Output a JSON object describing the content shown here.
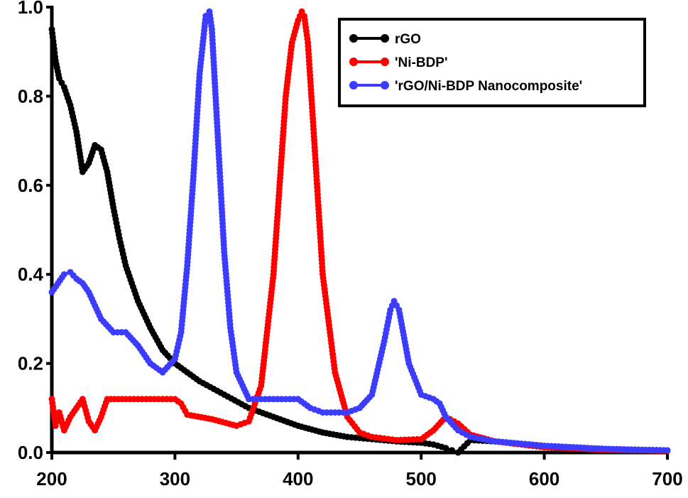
{
  "chart_data": {
    "type": "line",
    "title": "",
    "xlabel": "",
    "ylabel": "",
    "xlim": [
      200,
      700
    ],
    "ylim": [
      0,
      1.0
    ],
    "xticks": [
      "200",
      "300",
      "400",
      "500",
      "600",
      "700"
    ],
    "yticks": [
      "0.0",
      "0.2",
      "0.4",
      "0.6",
      "0.8",
      "1.0"
    ],
    "grid": false,
    "legend_position": "top-right",
    "series": [
      {
        "name": "rGO",
        "color": "#000000",
        "x": [
          200,
          203,
          206,
          210,
          215,
          220,
          225,
          230,
          235,
          240,
          245,
          250,
          255,
          260,
          265,
          270,
          280,
          290,
          300,
          310,
          320,
          340,
          360,
          380,
          400,
          420,
          440,
          460,
          480,
          500,
          510,
          520,
          525,
          530,
          540,
          560,
          600,
          650,
          700
        ],
        "y": [
          0.95,
          0.88,
          0.84,
          0.82,
          0.78,
          0.72,
          0.63,
          0.65,
          0.69,
          0.68,
          0.63,
          0.55,
          0.48,
          0.42,
          0.38,
          0.34,
          0.28,
          0.23,
          0.2,
          0.18,
          0.16,
          0.13,
          0.1,
          0.08,
          0.06,
          0.045,
          0.035,
          0.03,
          0.025,
          0.022,
          0.018,
          0.01,
          0.005,
          0.0,
          0.028,
          0.025,
          0.015,
          0.008,
          0.004
        ]
      },
      {
        "name": "'Ni-BDP'",
        "color": "#ff0000",
        "x": [
          200,
          203,
          206,
          210,
          215,
          220,
          225,
          230,
          235,
          240,
          245,
          260,
          280,
          300,
          305,
          310,
          330,
          350,
          360,
          370,
          380,
          390,
          395,
          400,
          403,
          405,
          408,
          412,
          420,
          430,
          440,
          450,
          460,
          480,
          500,
          510,
          520,
          530,
          540,
          560,
          600,
          650,
          700
        ],
        "y": [
          0.12,
          0.06,
          0.09,
          0.05,
          0.08,
          0.1,
          0.12,
          0.07,
          0.05,
          0.08,
          0.12,
          0.12,
          0.12,
          0.12,
          0.11,
          0.085,
          0.075,
          0.06,
          0.07,
          0.15,
          0.4,
          0.8,
          0.92,
          0.97,
          0.99,
          0.98,
          0.92,
          0.75,
          0.4,
          0.18,
          0.08,
          0.045,
          0.035,
          0.028,
          0.03,
          0.05,
          0.08,
          0.065,
          0.04,
          0.025,
          0.012,
          0.006,
          0.004
        ]
      },
      {
        "name": "'rGO/Ni-BDP Nanocomposite'",
        "color": "#3c3cff",
        "x": [
          200,
          205,
          210,
          215,
          220,
          225,
          230,
          240,
          250,
          260,
          270,
          280,
          290,
          300,
          305,
          310,
          315,
          320,
          325,
          328,
          330,
          335,
          340,
          345,
          350,
          360,
          380,
          400,
          410,
          420,
          430,
          440,
          450,
          460,
          470,
          475,
          478,
          482,
          490,
          500,
          510,
          515,
          520,
          530,
          540,
          550,
          560,
          600,
          650,
          700
        ],
        "y": [
          0.36,
          0.38,
          0.4,
          0.405,
          0.39,
          0.38,
          0.36,
          0.3,
          0.27,
          0.27,
          0.24,
          0.2,
          0.18,
          0.21,
          0.27,
          0.42,
          0.62,
          0.85,
          0.98,
          0.99,
          0.95,
          0.7,
          0.45,
          0.28,
          0.18,
          0.12,
          0.12,
          0.12,
          0.1,
          0.09,
          0.09,
          0.09,
          0.1,
          0.13,
          0.25,
          0.32,
          0.34,
          0.32,
          0.2,
          0.13,
          0.12,
          0.11,
          0.08,
          0.05,
          0.035,
          0.03,
          0.025,
          0.015,
          0.008,
          0.005
        ]
      }
    ]
  }
}
